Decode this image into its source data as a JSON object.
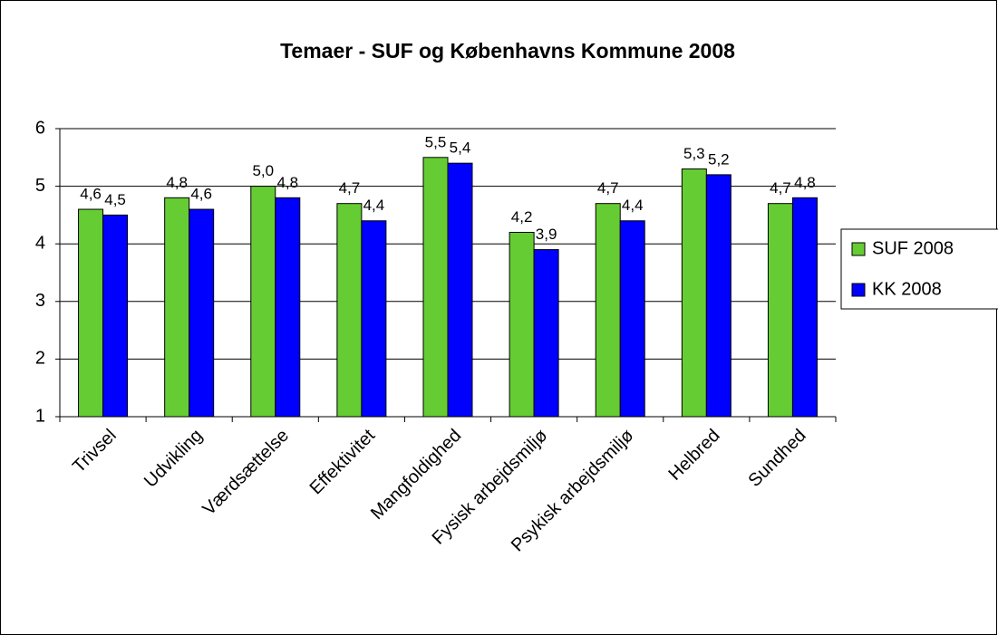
{
  "chart_data": {
    "type": "bar",
    "title": "Temaer - SUF og Københavns Kommune 2008",
    "categories": [
      "Trivsel",
      "Udvikling",
      "Værdsættelse",
      "Effektivitet",
      "Mangfoldighed",
      "Fysisk arbejdsmiljø",
      "Psykisk arbejdsmiljø",
      "Helbred",
      "Sundhed"
    ],
    "series": [
      {
        "name": "SUF 2008",
        "color": "#66cc33",
        "values": [
          4.6,
          4.8,
          5.0,
          4.7,
          5.5,
          4.2,
          4.7,
          5.3,
          4.7
        ],
        "value_labels": [
          "4,6",
          "4,8",
          "5,0",
          "4,7",
          "5,5",
          "4,2",
          "4,7",
          "5,3",
          "4,7"
        ]
      },
      {
        "name": "KK 2008",
        "color": "#0000ff",
        "values": [
          4.5,
          4.6,
          4.8,
          4.4,
          5.4,
          3.9,
          4.4,
          5.2,
          4.8
        ],
        "value_labels": [
          "4,5",
          "4,6",
          "4,8",
          "4,4",
          "5,4",
          "3,9",
          "4,4",
          "5,2",
          "4,8"
        ]
      }
    ],
    "ylim": [
      1,
      6
    ],
    "yticks": [
      1,
      2,
      3,
      4,
      5,
      6
    ],
    "grid": true,
    "legend": "right"
  }
}
